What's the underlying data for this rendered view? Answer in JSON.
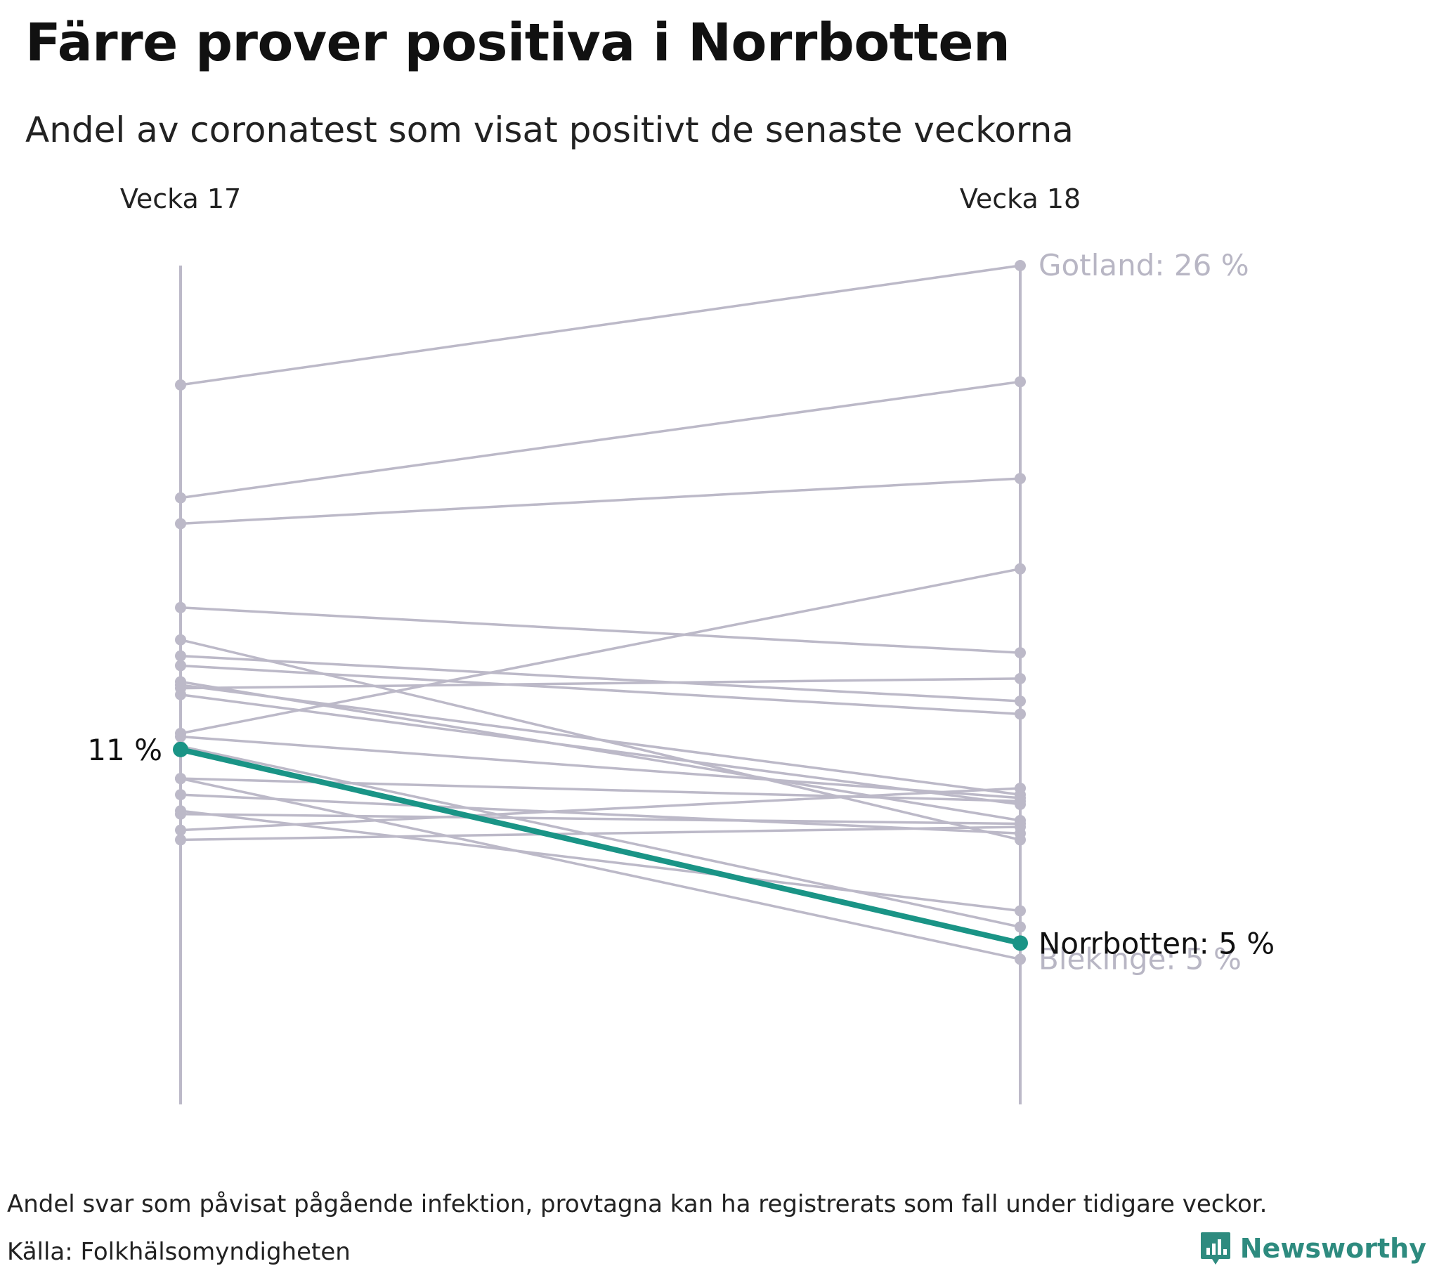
{
  "title": "Färre prover positiva i Norrbotten",
  "subtitle": "Andel av coronatest som visat positivt de senaste veckorna",
  "footer": {
    "note": "Andel svar som påvisat pågående infektion, provtagna kan ha registrerats som fall under tidigare veckor.",
    "source": "Källa: Folkhälsomyndigheten",
    "brand": "Newsworthy"
  },
  "colors": {
    "grey": "#bcb9c8",
    "highlight": "#1a9486",
    "text": "#222222",
    "label_grey": "#b8b6c4"
  },
  "icons": [
    "newsworthy-logo-icon"
  ],
  "chart_data": {
    "type": "slope",
    "x": [
      "Vecka 17",
      "Vecka 18"
    ],
    "unit": "%",
    "ylim": [
      0,
      26
    ],
    "highlight": {
      "name": "Norrbotten",
      "values": [
        11.0,
        5.0
      ],
      "start_label": "11 %",
      "end_label": "Norrbotten: 5 %"
    },
    "labeled": [
      {
        "name": "Gotland",
        "values": [
          22.3,
          26.0
        ],
        "end_label": "Gotland: 26 %"
      },
      {
        "name": "Blekinge",
        "values": [
          10.1,
          4.5
        ],
        "end_label": "Blekinge: 5 %"
      }
    ],
    "series": [
      {
        "values": [
          18.8,
          22.4
        ]
      },
      {
        "values": [
          18.0,
          19.4
        ]
      },
      {
        "values": [
          15.4,
          14.0
        ]
      },
      {
        "values": [
          14.4,
          8.2
        ]
      },
      {
        "values": [
          13.9,
          12.5
        ]
      },
      {
        "values": [
          13.6,
          12.1
        ]
      },
      {
        "values": [
          12.9,
          13.2
        ]
      },
      {
        "values": [
          13.1,
          8.8
        ]
      },
      {
        "values": [
          13.0,
          9.6
        ]
      },
      {
        "values": [
          12.7,
          9.3
        ]
      },
      {
        "values": [
          11.4,
          9.5
        ]
      },
      {
        "values": [
          10.1,
          9.4
        ]
      },
      {
        "values": [
          9.6,
          8.4
        ]
      },
      {
        "values": [
          9.1,
          6.0
        ]
      },
      {
        "values": [
          9.0,
          8.7
        ]
      },
      {
        "values": [
          8.5,
          9.8
        ]
      },
      {
        "values": [
          8.2,
          8.6
        ]
      },
      {
        "values": [
          11.5,
          16.6
        ]
      },
      {
        "values": [
          11.1,
          5.5
        ]
      }
    ]
  }
}
